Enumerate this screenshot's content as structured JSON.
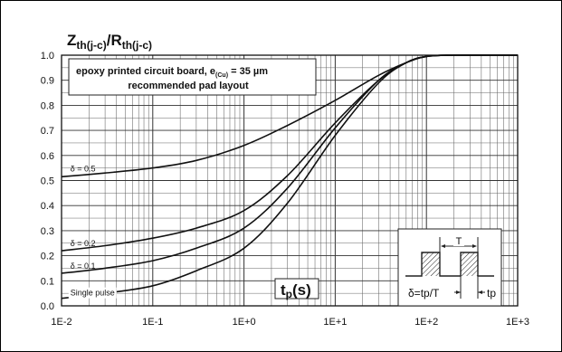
{
  "chart_data": {
    "type": "line",
    "title_main": "Z",
    "title_main_sub": "th(j-c)",
    "title_sep": "/R",
    "title_sep_sub": "th(j-c)",
    "xlabel_main": "t",
    "xlabel_sub": "p",
    "xlabel_unit": "(s)",
    "x_scale": "log",
    "xlim": [
      0.01,
      1000
    ],
    "ylim": [
      0,
      1
    ],
    "grid": true,
    "x_ticks": [
      "1E-2",
      "1E-1",
      "1E+0",
      "1E+1",
      "1E+2",
      "1E+3"
    ],
    "y_ticks": [
      "0.0",
      "0.1",
      "0.2",
      "0.3",
      "0.4",
      "0.5",
      "0.6",
      "0.7",
      "0.8",
      "0.9",
      "1.0"
    ],
    "annotation": {
      "line1_pre": "epoxy printed circuit board, e",
      "line1_sub": "(Cu)",
      "line1_post": " = 35 µm",
      "line2": "recommended pad layout"
    },
    "inset": {
      "period_label": "T",
      "duty_label": "δ=tp/T",
      "pulse_label": "tp"
    },
    "series": [
      {
        "name": "δ = 0.5",
        "x": [
          0.01,
          0.03,
          0.1,
          0.3,
          1,
          3,
          10,
          30,
          60,
          100,
          200,
          1000
        ],
        "y": [
          0.515,
          0.53,
          0.55,
          0.58,
          0.64,
          0.72,
          0.82,
          0.92,
          0.97,
          0.995,
          1.0,
          1.0
        ]
      },
      {
        "name": "δ = 0.2",
        "x": [
          0.01,
          0.03,
          0.1,
          0.3,
          1,
          3,
          10,
          30,
          60,
          100,
          200,
          1000
        ],
        "y": [
          0.22,
          0.24,
          0.27,
          0.31,
          0.38,
          0.52,
          0.73,
          0.9,
          0.97,
          0.995,
          1.0,
          1.0
        ]
      },
      {
        "name": "δ = 0.1",
        "x": [
          0.01,
          0.03,
          0.1,
          0.3,
          1,
          3,
          10,
          30,
          60,
          100,
          200,
          1000
        ],
        "y": [
          0.13,
          0.15,
          0.18,
          0.23,
          0.31,
          0.47,
          0.71,
          0.9,
          0.97,
          0.995,
          1.0,
          1.0
        ]
      },
      {
        "name": "Single pulse",
        "x": [
          0.01,
          0.03,
          0.1,
          0.3,
          1,
          3,
          10,
          30,
          60,
          100,
          200,
          1000
        ],
        "y": [
          0.03,
          0.05,
          0.08,
          0.14,
          0.23,
          0.41,
          0.68,
          0.89,
          0.97,
          0.995,
          1.0,
          1.0
        ]
      }
    ]
  }
}
